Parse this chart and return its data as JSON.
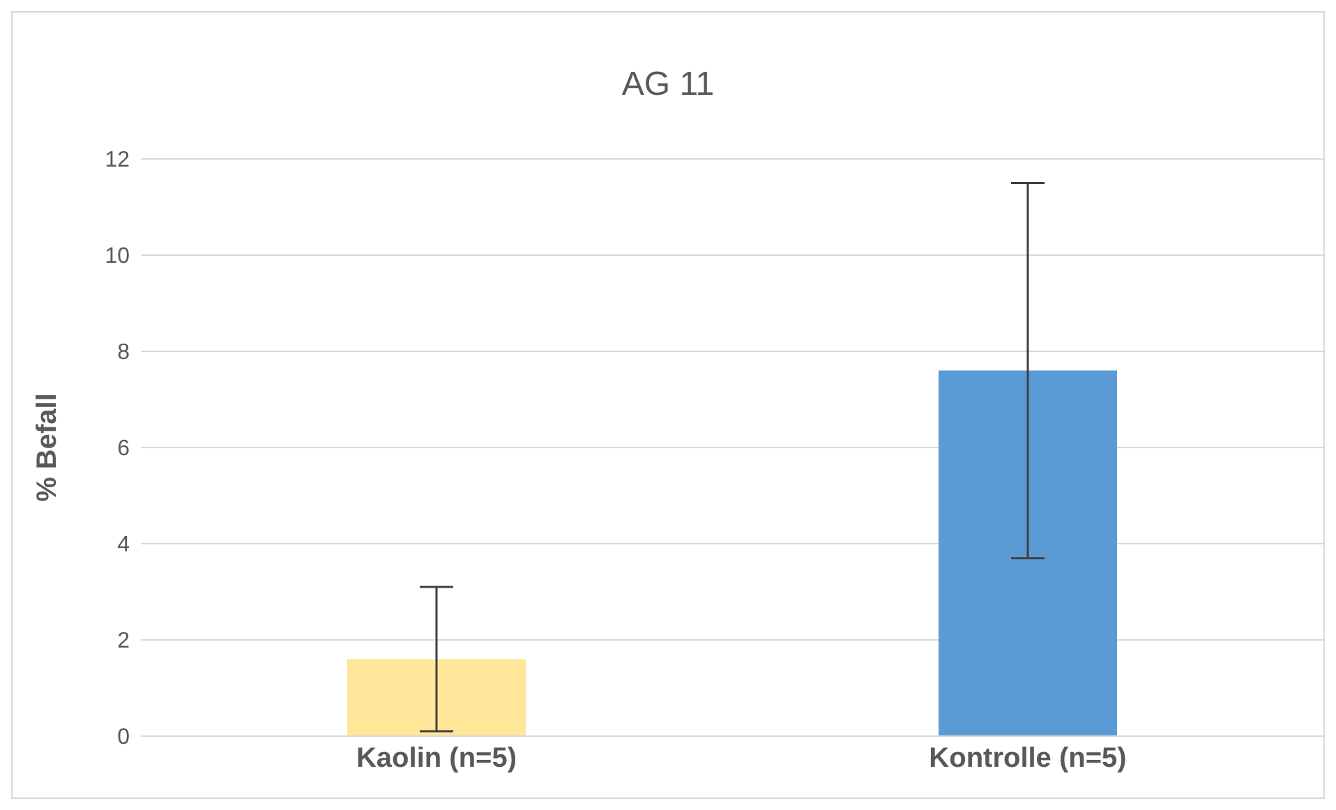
{
  "chart_data": {
    "type": "bar",
    "title": "AG 11",
    "ylabel": "% Befall",
    "categories": [
      "Kaolin (n=5)",
      "Kontrolle (n=5)"
    ],
    "values": [
      1.6,
      7.6
    ],
    "colors": [
      "#ffe699",
      "#5b9bd5"
    ],
    "errors": [
      1.5,
      3.9
    ],
    "ylim": [
      0,
      12
    ],
    "yticks": [
      0,
      2,
      4,
      6,
      8,
      10,
      12
    ],
    "grid": "y",
    "legend": false
  }
}
